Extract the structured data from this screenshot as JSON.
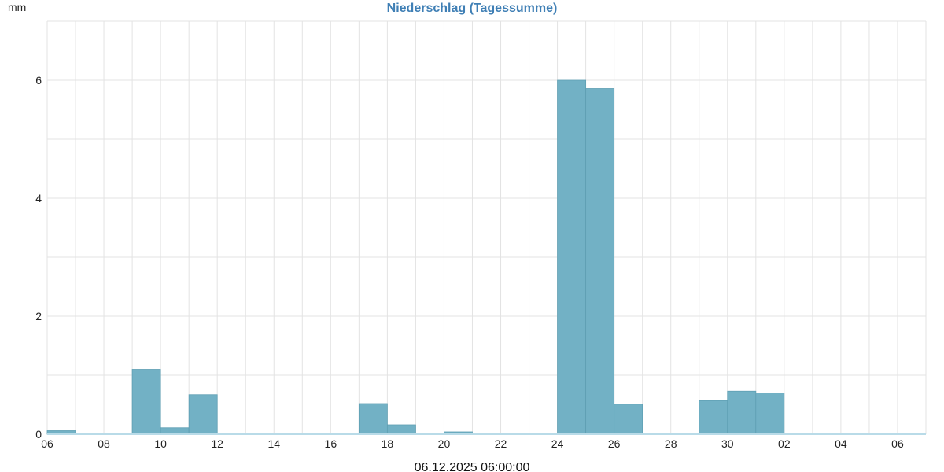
{
  "colors": {
    "title": "#3f7fb5",
    "bar_fill": "#72b1c5",
    "bar_stroke": "#5e9fb3",
    "grid": "#e3e3e3",
    "baseline": "#b9dbe8",
    "text": "#222222"
  },
  "chart_data": {
    "type": "bar",
    "title": "Niederschlag (Tagessumme)",
    "ylabel": "mm",
    "xlabel": "06.12.2025 06:00:00",
    "ylim": [
      0,
      7
    ],
    "y_ticks": [
      0,
      2,
      4,
      6
    ],
    "x_ticks": [
      "06",
      "08",
      "10",
      "12",
      "14",
      "16",
      "18",
      "20",
      "22",
      "24",
      "26",
      "28",
      "30",
      "02",
      "04",
      "06"
    ],
    "grid": true,
    "categories": [
      "2025-11-06",
      "2025-11-07",
      "2025-11-08",
      "2025-11-09",
      "2025-11-10",
      "2025-11-11",
      "2025-11-12",
      "2025-11-13",
      "2025-11-14",
      "2025-11-15",
      "2025-11-16",
      "2025-11-17",
      "2025-11-18",
      "2025-11-19",
      "2025-11-20",
      "2025-11-21",
      "2025-11-22",
      "2025-11-23",
      "2025-11-24",
      "2025-11-25",
      "2025-11-26",
      "2025-11-27",
      "2025-11-28",
      "2025-11-29",
      "2025-11-30",
      "2025-12-01",
      "2025-12-02",
      "2025-12-03",
      "2025-12-04",
      "2025-12-05",
      "2025-12-06"
    ],
    "values": [
      0.06,
      0,
      0,
      1.1,
      0.11,
      0.67,
      0,
      0,
      0,
      0,
      0,
      0.52,
      0.16,
      0,
      0.04,
      0,
      0,
      0,
      6.0,
      5.86,
      0.51,
      0,
      0,
      0.57,
      0.73,
      0.7,
      0,
      0,
      0,
      0,
      0
    ]
  }
}
